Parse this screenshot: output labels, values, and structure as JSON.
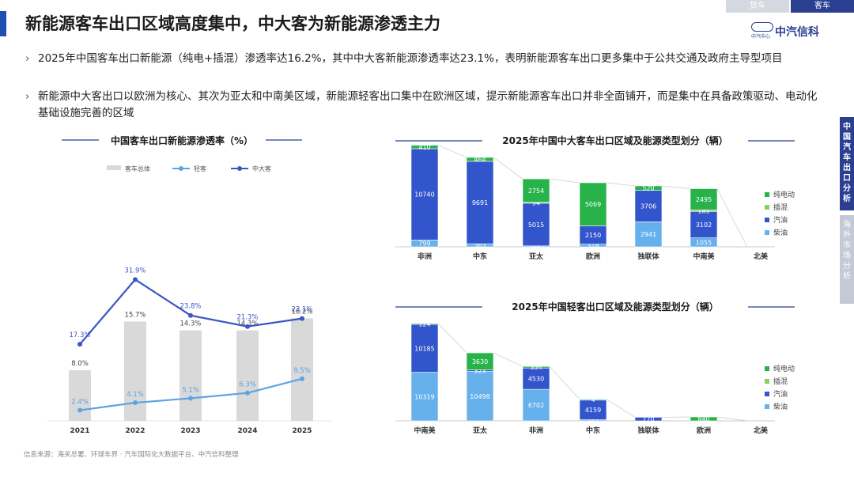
{
  "header": {
    "title": "新能源客车出口区域高度集中，中大客为新能源渗透主力",
    "tabs": [
      "货车",
      "客车"
    ],
    "logo_text": "中汽信科",
    "logo_sub": "中汽中心"
  },
  "bullets": [
    "2025年中国客车出口新能源（纯电+插混）渗透率达16.2%，其中中大客新能源渗透率达23.1%，表明新能源客车出口更多集中于公共交通及政府主导型项目",
    "新能源中大客出口以欧洲为核心、其次为亚太和中南美区域，新能源轻客出口集中在欧洲区域，提示新能源客车出口并非全面铺开，而是集中在具备政策驱动、电动化基础设施完善的区域"
  ],
  "side_tabs": [
    "中国汽车出口分析",
    "海外市场分析"
  ],
  "source": "信息来源：海关总署、环球车界 · 汽车国际化大数据平台、中汽信科整理",
  "colors": {
    "accent": "#2a3f8f",
    "total_bar": "#d9d9d9",
    "light_line": "#5ba3e6",
    "heavy_line": "#3a56c4",
    "bev": "#27b34a",
    "phev": "#8dcf5e",
    "gasoline": "#3355cc",
    "diesel": "#66b0ec"
  },
  "chart_data": [
    {
      "type": "bar+line",
      "title": "中国客车出口新能源渗透率（%）",
      "categories": [
        "2021",
        "2022",
        "2023",
        "2024",
        "2025"
      ],
      "series": [
        {
          "name": "客车总体",
          "kind": "bar",
          "values": [
            8.0,
            15.7,
            14.3,
            14.3,
            16.2
          ]
        },
        {
          "name": "轻客",
          "kind": "line",
          "values": [
            2.4,
            4.1,
            5.1,
            6.3,
            9.5
          ]
        },
        {
          "name": "中大客",
          "kind": "line",
          "values": [
            17.3,
            31.9,
            23.8,
            21.3,
            23.1
          ]
        }
      ],
      "value_suffix": "%"
    },
    {
      "type": "stacked-bar",
      "title": "2025年中国中大客车出口区域及能源类型划分（辆）",
      "categories": [
        "非洲",
        "中东",
        "亚太",
        "欧洲",
        "独联体",
        "中南美",
        "北美"
      ],
      "stack_order": [
        "柴油",
        "汽油",
        "插混",
        "纯电动"
      ],
      "legend": [
        "纯电动",
        "插混",
        "汽油",
        "柴油"
      ],
      "series": [
        {
          "name": "柴油",
          "values": [
            799,
            363,
            35,
            318,
            2941,
            1055,
            0
          ],
          "labels": [
            "799",
            "363",
            "35",
            "318",
            "2941",
            "1055",
            ""
          ]
        },
        {
          "name": "汽油",
          "values": [
            10740,
            9691,
            5015,
            2150,
            3706,
            3102,
            0
          ],
          "labels": [
            "10740",
            "9691",
            "5015",
            "2150",
            "3706",
            "3102",
            ""
          ]
        },
        {
          "name": "插混",
          "values": [
            0,
            0,
            94,
            0,
            0,
            185,
            0
          ],
          "labels": [
            "",
            "",
            "94",
            "",
            "",
            "185",
            ""
          ]
        },
        {
          "name": "纯电动",
          "values": [
            410,
            464,
            2754,
            5069,
            520,
            2495,
            0
          ],
          "labels": [
            "410",
            "464",
            "2754",
            "5069",
            "520",
            "2495",
            ""
          ]
        }
      ]
    },
    {
      "type": "stacked-bar",
      "title": "2025年中国轻客出口区域及能源类型划分（辆）",
      "categories": [
        "中南美",
        "亚太",
        "非洲",
        "中东",
        "独联体",
        "欧洲",
        "北美"
      ],
      "stack_order": [
        "柴油",
        "汽油",
        "插混",
        "纯电动"
      ],
      "legend": [
        "纯电动",
        "插混",
        "汽油",
        "柴油"
      ],
      "series": [
        {
          "name": "柴油",
          "values": [
            10319,
            10498,
            6702,
            247,
            0,
            0,
            0
          ],
          "labels": [
            "10319",
            "10498",
            "6702",
            "247",
            "",
            "",
            ""
          ]
        },
        {
          "name": "汽油",
          "values": [
            10185,
            323,
            4530,
            4159,
            770,
            0,
            0
          ],
          "labels": [
            "10185",
            "323",
            "4530",
            "4159",
            "770",
            "",
            ""
          ]
        },
        {
          "name": "插混",
          "values": [
            0,
            0,
            0,
            0,
            0,
            0,
            0
          ],
          "labels": [
            "",
            "",
            "",
            "",
            "",
            "",
            ""
          ]
        },
        {
          "name": "纯电动",
          "values": [
            124,
            3630,
            334,
            4,
            0,
            840,
            0
          ],
          "labels": [
            "124",
            "3630",
            "334",
            "4",
            "",
            "840",
            ""
          ]
        }
      ]
    }
  ]
}
